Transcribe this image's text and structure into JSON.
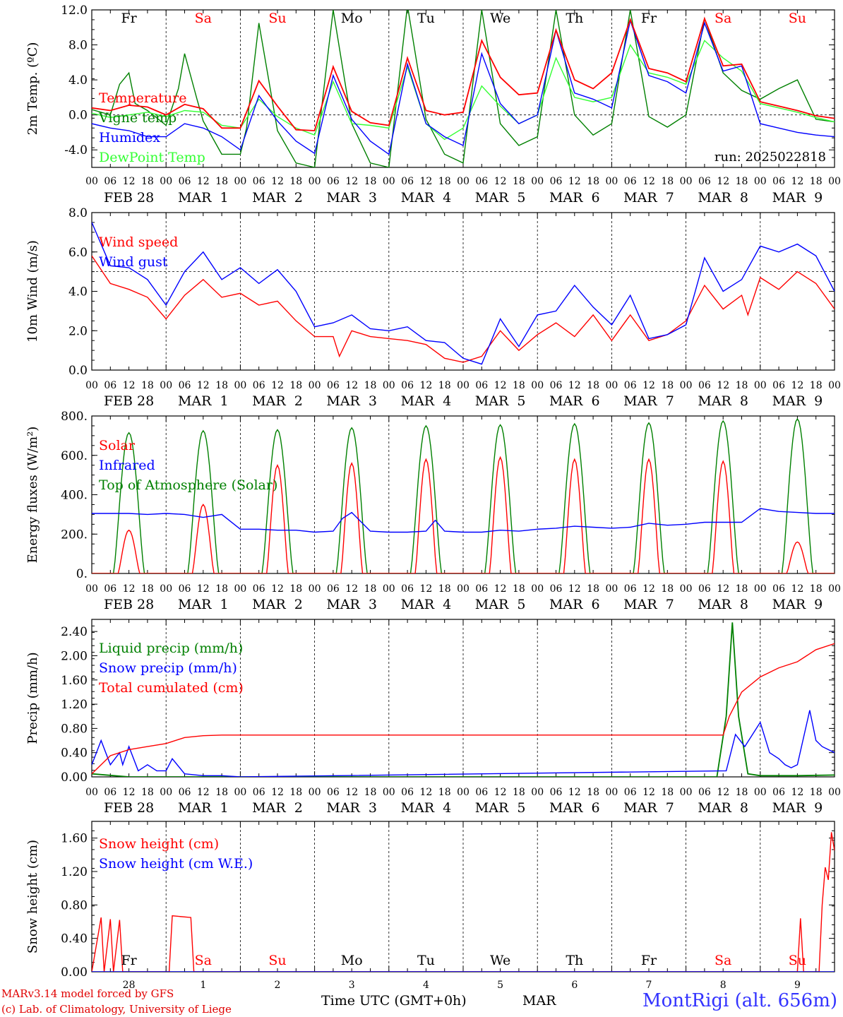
{
  "days": {
    "week": [
      "Fr",
      "Sa",
      "Su",
      "Mo",
      "Tu",
      "We",
      "Th",
      "Fr",
      "Sa",
      "Su"
    ],
    "weekend_color": [
      "#000000",
      "#ff0000",
      "#ff0000",
      "#000000",
      "#000000",
      "#000000",
      "#000000",
      "#000000",
      "#ff0000",
      "#ff0000"
    ],
    "dates": [
      "FEB 28",
      "MAR  1",
      "MAR  2",
      "MAR  3",
      "MAR  4",
      "MAR  5",
      "MAR  6",
      "MAR  7",
      "MAR  8",
      "MAR  9"
    ],
    "hour_ticks": [
      "00",
      "06",
      "12",
      "18"
    ],
    "bottom_daynums": [
      "28",
      "1",
      "2",
      "3",
      "4",
      "5",
      "6",
      "7",
      "8",
      "9"
    ]
  },
  "colors": {
    "red": "#ff0000",
    "green": "#008000",
    "blue": "#0000ff",
    "lightgreen": "#33ff33",
    "grid": "#000000"
  },
  "chart_data": [
    {
      "type": "line",
      "ylabel": "2m Temp. (ºC)",
      "ylim": [
        -6,
        12
      ],
      "yticks": [
        "12.0",
        "8.0",
        "4.0",
        "0.0",
        "-4.0"
      ],
      "x_unit": "hours since FEB 28 00 UTC",
      "annotation": "run: 2025022818",
      "series": [
        {
          "name": "Temperature",
          "color": "#ff0000",
          "x": [
            0,
            6,
            12,
            18,
            24,
            30,
            36,
            42,
            48,
            54,
            60,
            66,
            72,
            78,
            84,
            90,
            96,
            102,
            108,
            114,
            120,
            126,
            132,
            138,
            144,
            150,
            156,
            162,
            168,
            174,
            180,
            186,
            192,
            198,
            204,
            210,
            216,
            222,
            228,
            234,
            240
          ],
          "values": [
            0.8,
            0.5,
            1.1,
            0.9,
            0.0,
            1.2,
            0.7,
            -1.5,
            -1.5,
            3.9,
            1.0,
            -1.7,
            -1.8,
            5.5,
            0.4,
            -0.9,
            -1.2,
            6.5,
            0.5,
            0.0,
            0.3,
            8.5,
            4.3,
            2.3,
            2.5,
            9.7,
            4.0,
            3.0,
            4.8,
            10.9,
            5.3,
            4.8,
            3.8,
            11.0,
            5.6,
            5.8,
            1.5,
            1.0,
            0.5,
            -0.1,
            -0.4
          ]
        },
        {
          "name": "Vigne temp",
          "color": "#008000",
          "x": [
            0,
            6,
            9,
            12,
            14,
            18,
            24,
            28,
            30,
            34,
            36,
            42,
            48,
            50,
            54,
            60,
            66,
            72,
            78,
            84,
            90,
            96,
            102,
            108,
            114,
            120,
            126,
            132,
            138,
            144,
            150,
            156,
            162,
            168,
            174,
            180,
            186,
            192,
            198,
            204,
            210,
            216,
            222,
            228,
            234,
            240
          ],
          "values": [
            0.6,
            0.0,
            3.5,
            4.8,
            1.3,
            0.5,
            -1.2,
            3.0,
            7.0,
            1.8,
            -0.7,
            -4.5,
            -4.5,
            -1.5,
            10.5,
            -1.8,
            -5.5,
            -6.0,
            12.0,
            -1.0,
            -5.5,
            -6.0,
            12.5,
            -0.5,
            -4.5,
            -5.5,
            12.0,
            -1.0,
            -3.5,
            -2.5,
            12.0,
            0.0,
            -2.3,
            -1.0,
            12.0,
            -0.2,
            -1.4,
            0.0,
            11.0,
            4.8,
            2.8,
            1.8,
            3.0,
            4.0,
            -0.5,
            -0.8
          ]
        },
        {
          "name": "Humidex",
          "color": "#0000ff",
          "x": [
            0,
            6,
            12,
            18,
            24,
            30,
            36,
            42,
            48,
            54,
            60,
            66,
            72,
            78,
            84,
            90,
            96,
            102,
            108,
            114,
            120,
            126,
            132,
            138,
            144,
            150,
            156,
            162,
            168,
            174,
            180,
            186,
            192,
            198,
            204,
            210,
            216,
            222,
            228,
            234,
            240
          ],
          "values": [
            -1.0,
            -1.5,
            -1.8,
            -2.5,
            -2.5,
            -1.0,
            -1.5,
            -2.5,
            -4.0,
            2.2,
            -0.7,
            -3.0,
            -4.4,
            4.5,
            -0.5,
            -3.0,
            -4.5,
            5.8,
            -1.0,
            -2.5,
            -3.5,
            7.0,
            1.3,
            -1.0,
            0.0,
            9.7,
            2.5,
            1.8,
            0.8,
            10.8,
            4.5,
            3.8,
            2.5,
            10.5,
            5.0,
            5.6,
            -1.0,
            -1.5,
            -2.0,
            -2.3,
            -2.5
          ]
        },
        {
          "name": "DewPoint Temp",
          "color": "#33ff33",
          "x": [
            0,
            6,
            12,
            18,
            24,
            30,
            36,
            42,
            48,
            54,
            60,
            66,
            72,
            78,
            84,
            90,
            96,
            102,
            108,
            114,
            120,
            126,
            132,
            138,
            144,
            150,
            156,
            162,
            168,
            174,
            180,
            186,
            192,
            198,
            204,
            210,
            216,
            222,
            228,
            234,
            240
          ],
          "values": [
            0.2,
            -0.3,
            0.0,
            0.3,
            -0.2,
            0.5,
            0.3,
            -1.2,
            -1.5,
            1.8,
            -0.2,
            -1.5,
            -2.3,
            3.8,
            -1.0,
            -1.2,
            -1.5,
            5.5,
            -1.0,
            -2.8,
            -1.5,
            3.3,
            1.0,
            -1.0,
            0.0,
            6.5,
            2.0,
            1.5,
            2.0,
            8.0,
            4.8,
            4.3,
            3.5,
            8.5,
            6.5,
            5.0,
            1.3,
            0.8,
            0.3,
            -0.3,
            -0.8
          ]
        }
      ]
    },
    {
      "type": "line",
      "ylabel": "10m Wind (m/s)",
      "ylim": [
        0,
        8
      ],
      "yticks": [
        "8.0",
        "6.0",
        "4.0",
        "2.0",
        "0.0"
      ],
      "series": [
        {
          "name": "Wind speed",
          "color": "#ff0000",
          "x": [
            0,
            6,
            12,
            18,
            24,
            30,
            36,
            42,
            48,
            54,
            60,
            66,
            72,
            78,
            80,
            84,
            90,
            96,
            102,
            108,
            114,
            120,
            126,
            132,
            138,
            144,
            150,
            156,
            162,
            168,
            174,
            180,
            186,
            192,
            198,
            204,
            210,
            212,
            216,
            222,
            228,
            234,
            240
          ],
          "values": [
            5.8,
            4.4,
            4.1,
            3.7,
            2.6,
            3.8,
            4.6,
            3.7,
            3.9,
            3.3,
            3.5,
            2.5,
            1.7,
            1.7,
            0.7,
            2.0,
            1.7,
            1.6,
            1.5,
            1.3,
            0.6,
            0.4,
            0.7,
            2.0,
            1.0,
            1.8,
            2.4,
            1.7,
            2.8,
            1.5,
            2.8,
            1.5,
            1.8,
            2.5,
            4.3,
            3.1,
            3.8,
            2.8,
            4.7,
            4.1,
            5.0,
            4.4,
            3.1
          ]
        },
        {
          "name": "Wind gust",
          "color": "#0000ff",
          "x": [
            0,
            6,
            12,
            18,
            24,
            30,
            36,
            42,
            48,
            54,
            60,
            66,
            72,
            78,
            84,
            90,
            96,
            102,
            108,
            114,
            120,
            126,
            132,
            138,
            144,
            150,
            156,
            162,
            168,
            174,
            180,
            186,
            192,
            198,
            204,
            210,
            216,
            222,
            228,
            234,
            240
          ],
          "values": [
            7.5,
            5.3,
            5.2,
            4.6,
            3.3,
            5.0,
            6.0,
            4.6,
            5.2,
            4.4,
            5.1,
            4.0,
            2.2,
            2.4,
            2.8,
            2.1,
            2.0,
            2.2,
            1.5,
            1.4,
            0.6,
            0.3,
            2.6,
            1.2,
            2.8,
            3.0,
            4.3,
            3.2,
            2.3,
            3.8,
            1.6,
            1.8,
            2.3,
            5.7,
            4.0,
            4.6,
            6.3,
            6.0,
            6.4,
            5.8,
            4.0
          ]
        }
      ],
      "reference_line": 5.0
    },
    {
      "type": "line",
      "ylabel": "Energy fluxes (W/m²)",
      "ylim": [
        0,
        800
      ],
      "yticks": [
        "800.",
        "600.",
        "400.",
        "200.",
        "0."
      ],
      "series": [
        {
          "name": "Solar",
          "color": "#ff0000",
          "peaks": [
            220,
            350,
            550,
            560,
            580,
            590,
            580,
            580,
            570,
            160
          ]
        },
        {
          "name": "Infrared",
          "color": "#0000ff",
          "x": [
            0,
            12,
            18,
            24,
            30,
            36,
            42,
            48,
            54,
            60,
            66,
            72,
            78,
            81,
            84,
            90,
            96,
            102,
            108,
            111,
            114,
            120,
            126,
            132,
            138,
            144,
            150,
            156,
            162,
            168,
            174,
            180,
            186,
            192,
            198,
            204,
            210,
            216,
            222,
            228,
            234,
            240
          ],
          "values": [
            305,
            305,
            300,
            305,
            300,
            285,
            300,
            225,
            225,
            220,
            220,
            210,
            215,
            280,
            310,
            215,
            210,
            210,
            215,
            270,
            215,
            210,
            210,
            220,
            215,
            225,
            230,
            240,
            235,
            230,
            235,
            255,
            245,
            250,
            260,
            260,
            260,
            330,
            315,
            310,
            305,
            305
          ]
        },
        {
          "name": "Top of Atmosphere (Solar)",
          "color": "#008000",
          "peaks": [
            715,
            725,
            730,
            740,
            750,
            755,
            760,
            765,
            775,
            785
          ]
        }
      ]
    },
    {
      "type": "line",
      "ylabel": "Precip (mm/h)",
      "ylim": [
        0,
        2.6
      ],
      "yticks": [
        "2.40",
        "2.00",
        "1.60",
        "1.20",
        "0.80",
        "0.40",
        "0.00"
      ],
      "series": [
        {
          "name": "Liquid precip (mm/h)",
          "color": "#008000",
          "x": [
            0,
            12,
            24,
            202,
            205,
            207,
            209,
            212,
            216,
            228,
            240
          ],
          "values": [
            0.05,
            0.0,
            0.0,
            0.0,
            1.0,
            2.55,
            1.0,
            0.05,
            0.02,
            0.02,
            0.03
          ]
        },
        {
          "name": "Snow precip (mm/h)",
          "color": "#0000ff",
          "x": [
            0,
            3,
            6,
            9,
            10,
            12,
            15,
            18,
            21,
            24,
            26,
            30,
            36,
            42,
            48,
            205,
            208,
            211,
            216,
            219,
            222,
            224,
            226,
            228,
            232,
            234,
            236,
            240
          ],
          "values": [
            0.2,
            0.6,
            0.2,
            0.4,
            0.2,
            0.5,
            0.1,
            0.2,
            0.1,
            0.1,
            0.3,
            0.05,
            0.02,
            0.02,
            0.0,
            0.1,
            0.7,
            0.5,
            0.9,
            0.4,
            0.3,
            0.2,
            0.15,
            0.2,
            1.1,
            0.6,
            0.5,
            0.4
          ]
        },
        {
          "name": "Total cumulated (cm)",
          "color": "#ff0000",
          "x": [
            0,
            6,
            12,
            18,
            24,
            30,
            36,
            42,
            48,
            204,
            206,
            210,
            216,
            222,
            228,
            234,
            240
          ],
          "values": [
            0.05,
            0.35,
            0.45,
            0.5,
            0.55,
            0.65,
            0.68,
            0.69,
            0.69,
            0.69,
            1.0,
            1.4,
            1.65,
            1.8,
            1.9,
            2.1,
            2.2
          ]
        }
      ]
    },
    {
      "type": "line",
      "ylabel": "Snow height (cm)",
      "ylim": [
        0,
        1.8
      ],
      "yticks": [
        "1.60",
        "1.20",
        "0.80",
        "0.40",
        "0.00"
      ],
      "series": [
        {
          "name": "Snow height (cm)",
          "color": "#ff0000",
          "x": [
            0,
            3,
            4,
            6,
            7,
            9,
            10,
            11,
            25,
            26,
            32,
            33,
            228,
            229,
            230,
            235,
            236,
            237,
            238,
            239,
            240
          ],
          "values": [
            0,
            0.65,
            0,
            0.63,
            0,
            0.62,
            0,
            0,
            0,
            0.67,
            0.65,
            0,
            0,
            0.64,
            0,
            0,
            0.8,
            1.25,
            1.1,
            1.67,
            1.45
          ]
        },
        {
          "name": "Snow height (cm W.E.)",
          "color": "#0000ff",
          "x": [
            0,
            240
          ],
          "values": [
            0,
            0
          ]
        }
      ]
    }
  ],
  "footer": {
    "model": "MARv3.14 model forced by GFS",
    "credit": "(c) Lab. of Climatology, University of Liege",
    "xlabel": "Time UTC (GMT+0h)",
    "month": "MAR",
    "station": "MontRigi (alt. 656m)"
  }
}
